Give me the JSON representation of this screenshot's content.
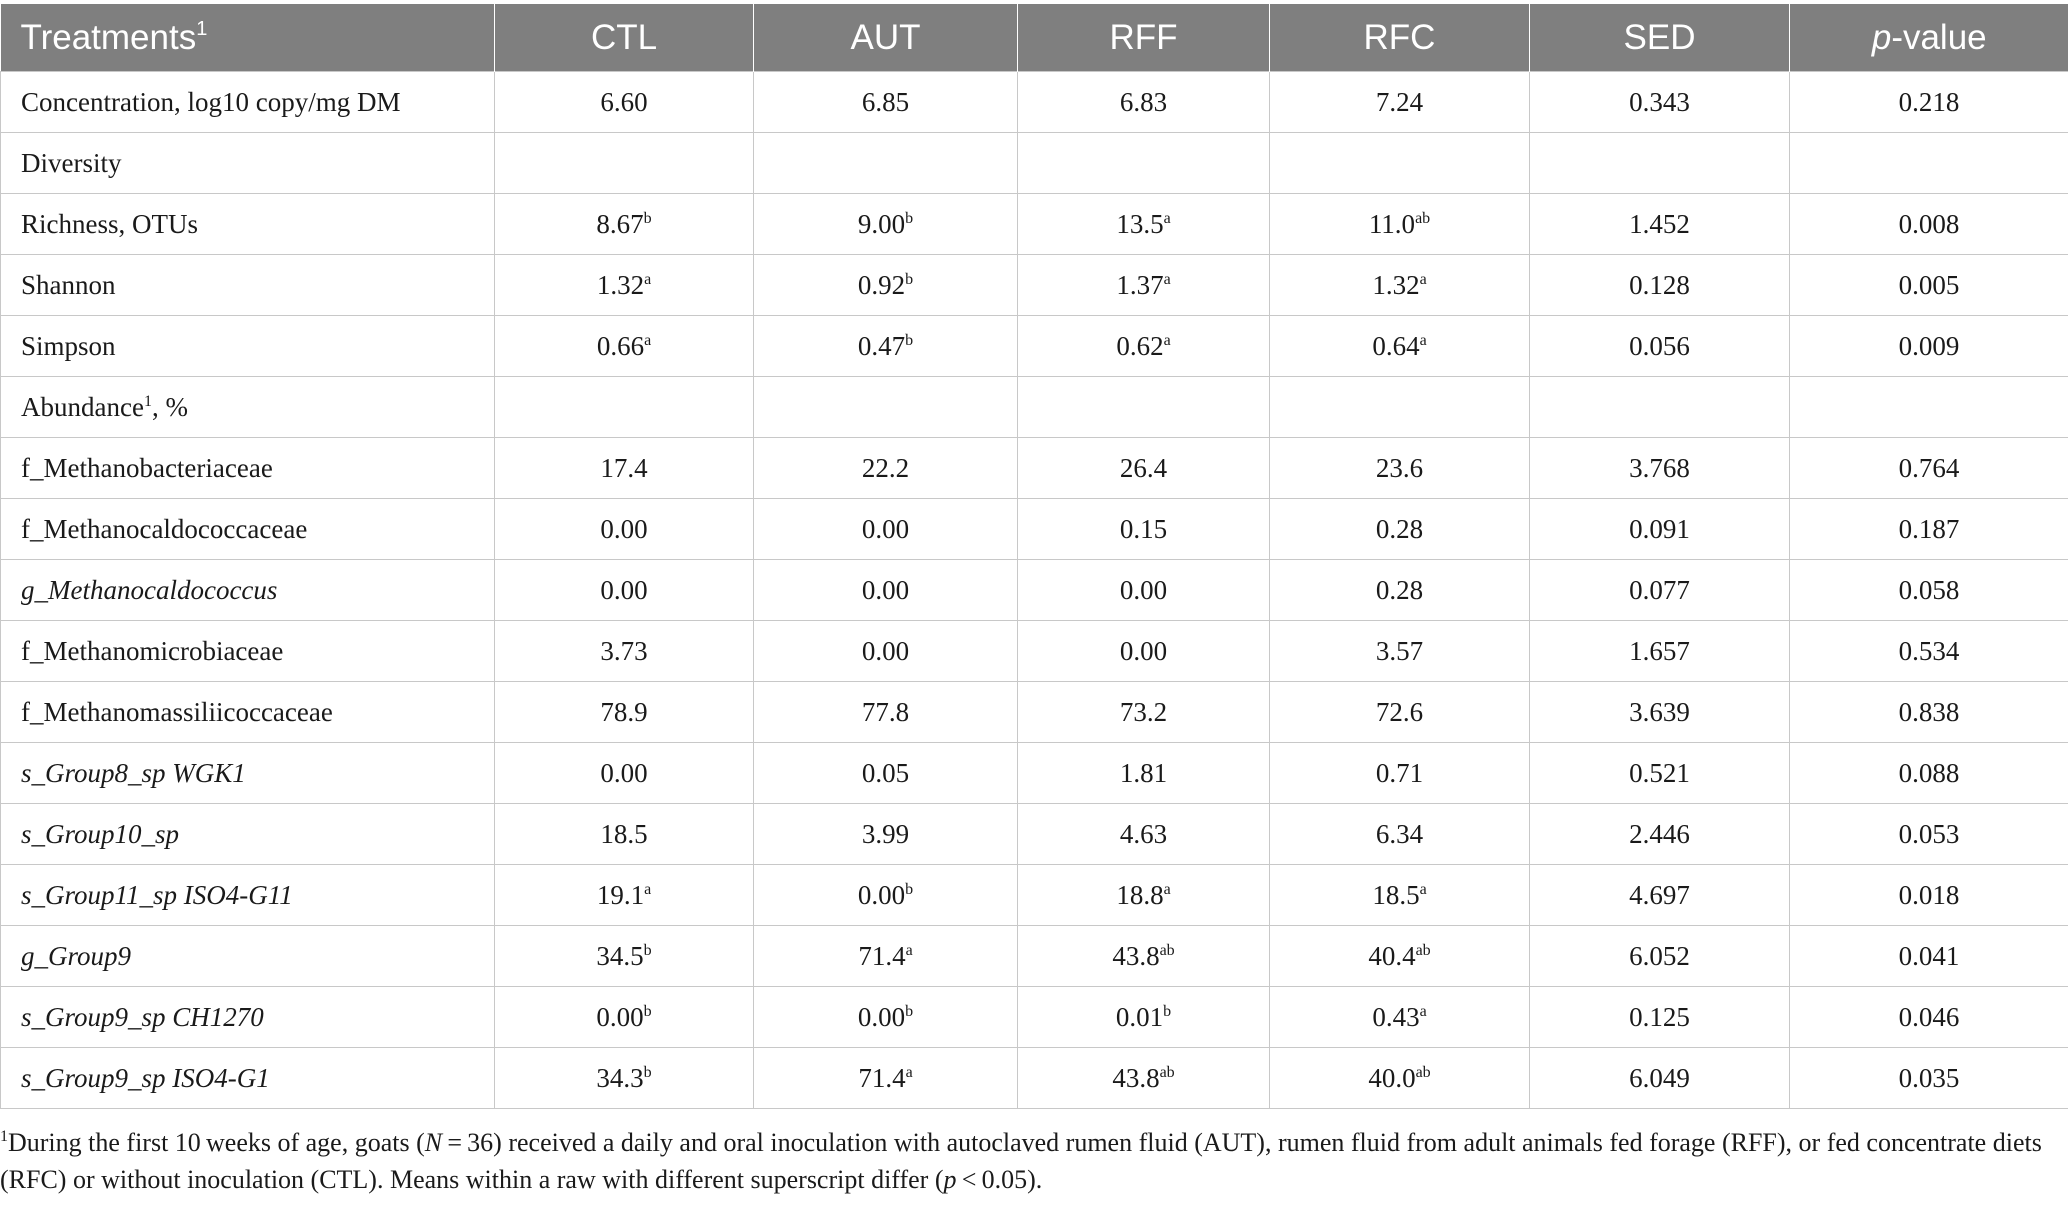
{
  "header": {
    "treatments_label": "Treatments",
    "treatments_sup": "1",
    "columns": [
      "CTL",
      "AUT",
      "RFF",
      "RFC",
      "SED"
    ],
    "pvalue_italic": "p",
    "pvalue_rest": "-value"
  },
  "rows": [
    {
      "label": "Concentration, log10 copy/mg DM",
      "label_sup": "",
      "italic": false,
      "cells": [
        {
          "v": "6.60",
          "s": ""
        },
        {
          "v": "6.85",
          "s": ""
        },
        {
          "v": "6.83",
          "s": ""
        },
        {
          "v": "7.24",
          "s": ""
        },
        {
          "v": "0.343",
          "s": ""
        },
        {
          "v": "0.218",
          "s": ""
        }
      ]
    },
    {
      "label": "Diversity",
      "label_sup": "",
      "italic": false,
      "cells": [
        {
          "v": "",
          "s": ""
        },
        {
          "v": "",
          "s": ""
        },
        {
          "v": "",
          "s": ""
        },
        {
          "v": "",
          "s": ""
        },
        {
          "v": "",
          "s": ""
        },
        {
          "v": "",
          "s": ""
        }
      ]
    },
    {
      "label": "Richness, OTUs",
      "label_sup": "",
      "italic": false,
      "cells": [
        {
          "v": "8.67",
          "s": "b"
        },
        {
          "v": "9.00",
          "s": "b"
        },
        {
          "v": "13.5",
          "s": "a"
        },
        {
          "v": "11.0",
          "s": "ab"
        },
        {
          "v": "1.452",
          "s": ""
        },
        {
          "v": "0.008",
          "s": ""
        }
      ]
    },
    {
      "label": "Shannon",
      "label_sup": "",
      "italic": false,
      "cells": [
        {
          "v": "1.32",
          "s": "a"
        },
        {
          "v": "0.92",
          "s": "b"
        },
        {
          "v": "1.37",
          "s": "a"
        },
        {
          "v": "1.32",
          "s": "a"
        },
        {
          "v": "0.128",
          "s": ""
        },
        {
          "v": "0.005",
          "s": ""
        }
      ]
    },
    {
      "label": "Simpson",
      "label_sup": "",
      "italic": false,
      "cells": [
        {
          "v": "0.66",
          "s": "a"
        },
        {
          "v": "0.47",
          "s": "b"
        },
        {
          "v": "0.62",
          "s": "a"
        },
        {
          "v": "0.64",
          "s": "a"
        },
        {
          "v": "0.056",
          "s": ""
        },
        {
          "v": "0.009",
          "s": ""
        }
      ]
    },
    {
      "label": "Abundance",
      "label_sup": "1",
      "label_suffix": ", %",
      "italic": false,
      "cells": [
        {
          "v": "",
          "s": ""
        },
        {
          "v": "",
          "s": ""
        },
        {
          "v": "",
          "s": ""
        },
        {
          "v": "",
          "s": ""
        },
        {
          "v": "",
          "s": ""
        },
        {
          "v": "",
          "s": ""
        }
      ]
    },
    {
      "label": "f_Methanobacteriaceae",
      "label_sup": "",
      "italic": false,
      "cells": [
        {
          "v": "17.4",
          "s": ""
        },
        {
          "v": "22.2",
          "s": ""
        },
        {
          "v": "26.4",
          "s": ""
        },
        {
          "v": "23.6",
          "s": ""
        },
        {
          "v": "3.768",
          "s": ""
        },
        {
          "v": "0.764",
          "s": ""
        }
      ]
    },
    {
      "label": "f_Methanocaldococcaceae",
      "label_sup": "",
      "italic": false,
      "cells": [
        {
          "v": "0.00",
          "s": ""
        },
        {
          "v": "0.00",
          "s": ""
        },
        {
          "v": "0.15",
          "s": ""
        },
        {
          "v": "0.28",
          "s": ""
        },
        {
          "v": "0.091",
          "s": ""
        },
        {
          "v": "0.187",
          "s": ""
        }
      ]
    },
    {
      "label": "g_Methanocaldococcus",
      "label_sup": "",
      "italic": true,
      "cells": [
        {
          "v": "0.00",
          "s": ""
        },
        {
          "v": "0.00",
          "s": ""
        },
        {
          "v": "0.00",
          "s": ""
        },
        {
          "v": "0.28",
          "s": ""
        },
        {
          "v": "0.077",
          "s": ""
        },
        {
          "v": "0.058",
          "s": ""
        }
      ]
    },
    {
      "label": "f_Methanomicrobiaceae",
      "label_sup": "",
      "italic": false,
      "cells": [
        {
          "v": "3.73",
          "s": ""
        },
        {
          "v": "0.00",
          "s": ""
        },
        {
          "v": "0.00",
          "s": ""
        },
        {
          "v": "3.57",
          "s": ""
        },
        {
          "v": "1.657",
          "s": ""
        },
        {
          "v": "0.534",
          "s": ""
        }
      ]
    },
    {
      "label": "f_Methanomassiliicoccaceae",
      "label_sup": "",
      "italic": false,
      "cells": [
        {
          "v": "78.9",
          "s": ""
        },
        {
          "v": "77.8",
          "s": ""
        },
        {
          "v": "73.2",
          "s": ""
        },
        {
          "v": "72.6",
          "s": ""
        },
        {
          "v": "3.639",
          "s": ""
        },
        {
          "v": "0.838",
          "s": ""
        }
      ]
    },
    {
      "label": "s_Group8_sp WGK1",
      "label_sup": "",
      "italic": true,
      "cells": [
        {
          "v": "0.00",
          "s": ""
        },
        {
          "v": "0.05",
          "s": ""
        },
        {
          "v": "1.81",
          "s": ""
        },
        {
          "v": "0.71",
          "s": ""
        },
        {
          "v": "0.521",
          "s": ""
        },
        {
          "v": "0.088",
          "s": ""
        }
      ]
    },
    {
      "label": "s_Group10_sp",
      "label_sup": "",
      "italic": true,
      "cells": [
        {
          "v": "18.5",
          "s": ""
        },
        {
          "v": "3.99",
          "s": ""
        },
        {
          "v": "4.63",
          "s": ""
        },
        {
          "v": "6.34",
          "s": ""
        },
        {
          "v": "2.446",
          "s": ""
        },
        {
          "v": "0.053",
          "s": ""
        }
      ]
    },
    {
      "label": "s_Group11_sp ISO4-G11",
      "label_sup": "",
      "italic": true,
      "cells": [
        {
          "v": "19.1",
          "s": "a"
        },
        {
          "v": "0.00",
          "s": "b"
        },
        {
          "v": "18.8",
          "s": "a"
        },
        {
          "v": "18.5",
          "s": "a"
        },
        {
          "v": "4.697",
          "s": ""
        },
        {
          "v": "0.018",
          "s": ""
        }
      ]
    },
    {
      "label": "g_Group9",
      "label_sup": "",
      "italic": true,
      "cells": [
        {
          "v": "34.5",
          "s": "b"
        },
        {
          "v": "71.4",
          "s": "a"
        },
        {
          "v": "43.8",
          "s": "ab"
        },
        {
          "v": "40.4",
          "s": "ab"
        },
        {
          "v": "6.052",
          "s": ""
        },
        {
          "v": "0.041",
          "s": ""
        }
      ]
    },
    {
      "label": "s_Group9_sp CH1270",
      "label_sup": "",
      "italic": true,
      "cells": [
        {
          "v": "0.00",
          "s": "b"
        },
        {
          "v": "0.00",
          "s": "b"
        },
        {
          "v": "0.01",
          "s": "b"
        },
        {
          "v": "0.43",
          "s": "a"
        },
        {
          "v": "0.125",
          "s": ""
        },
        {
          "v": "0.046",
          "s": ""
        }
      ]
    },
    {
      "label": "s_Group9_sp ISO4-G1",
      "label_sup": "",
      "italic": true,
      "cells": [
        {
          "v": "34.3",
          "s": "b"
        },
        {
          "v": "71.4",
          "s": "a"
        },
        {
          "v": "43.8",
          "s": "ab"
        },
        {
          "v": "40.0",
          "s": "ab"
        },
        {
          "v": "6.049",
          "s": ""
        },
        {
          "v": "0.035",
          "s": ""
        }
      ]
    }
  ],
  "footnote": {
    "marker": "1",
    "text1": "During the first 10 weeks of age, goats (",
    "n_italic": "N",
    "text2": " = 36) received a daily and oral inoculation with autoclaved rumen fluid (AUT), rumen fluid from adult animals fed forage (RFF), or fed concentrate diets (RFC) or without inoculation (CTL). Means within a raw with different superscript differ (",
    "p_italic": "p",
    "text3": " < 0.05)."
  }
}
